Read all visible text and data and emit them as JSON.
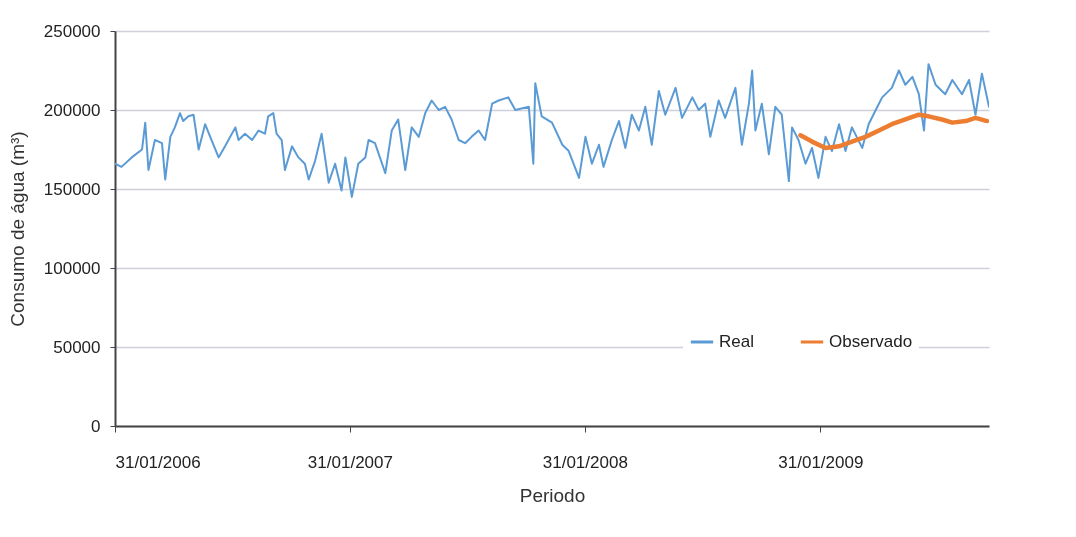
{
  "chart_data": {
    "type": "line",
    "xlabel": "Periodo",
    "ylabel": "Consumo de água (m³)",
    "xlim": [
      "2006-01-31",
      "2009-10-20"
    ],
    "xticks": [
      {
        "value": "2006-01-31",
        "label": "31/01/2006"
      },
      {
        "value": "2007-01-31",
        "label": "31/01/2007"
      },
      {
        "value": "2008-01-31",
        "label": "31/01/2008"
      },
      {
        "value": "2009-01-31",
        "label": "31/01/2009"
      }
    ],
    "ylim": [
      0,
      250000
    ],
    "yticks": [
      0,
      50000,
      100000,
      150000,
      200000,
      250000
    ],
    "grid": "y",
    "legend": "bottom right",
    "series": [
      {
        "name": "Real",
        "color": "#5b9bd5",
        "x": [
          "2006-01-31",
          "2006-02-10",
          "2006-02-26",
          "2006-03-14",
          "2006-03-19",
          "2006-03-24",
          "2006-04-03",
          "2006-04-14",
          "2006-04-19",
          "2006-04-27",
          "2006-05-04",
          "2006-05-12",
          "2006-05-17",
          "2006-05-25",
          "2006-06-02",
          "2006-06-10",
          "2006-06-20",
          "2006-06-30",
          "2006-07-11",
          "2006-07-21",
          "2006-08-06",
          "2006-08-11",
          "2006-08-21",
          "2006-09-01",
          "2006-09-11",
          "2006-09-21",
          "2006-09-26",
          "2006-10-04",
          "2006-10-09",
          "2006-10-17",
          "2006-10-22",
          "2006-11-02",
          "2006-11-12",
          "2006-11-22",
          "2006-11-28",
          "2006-12-08",
          "2006-12-18",
          "2006-12-29",
          "2007-01-08",
          "2007-01-18",
          "2007-01-24",
          "2007-02-03",
          "2007-02-13",
          "2007-02-24",
          "2007-03-01",
          "2007-03-11",
          "2007-03-22",
          "2007-03-27",
          "2007-04-06",
          "2007-04-16",
          "2007-04-27",
          "2007-05-07",
          "2007-05-18",
          "2007-05-28",
          "2007-06-07",
          "2007-06-18",
          "2007-06-28",
          "2007-07-08",
          "2007-07-19",
          "2007-07-29",
          "2007-08-08",
          "2007-08-19",
          "2007-08-29",
          "2007-09-09",
          "2007-09-19",
          "2007-10-04",
          "2007-10-15",
          "2007-11-05",
          "2007-11-12",
          "2007-11-15",
          "2007-11-25",
          "2007-12-11",
          "2007-12-27",
          "2008-01-06",
          "2008-01-22",
          "2008-02-01",
          "2008-02-11",
          "2008-02-22",
          "2008-02-29",
          "2008-03-13",
          "2008-03-24",
          "2008-04-03",
          "2008-04-13",
          "2008-04-24",
          "2008-05-04",
          "2008-05-14",
          "2008-05-25",
          "2008-06-04",
          "2008-06-20",
          "2008-06-30",
          "2008-07-16",
          "2008-07-26",
          "2008-08-05",
          "2008-08-13",
          "2008-08-26",
          "2008-09-05",
          "2008-09-21",
          "2008-10-01",
          "2008-10-12",
          "2008-10-17",
          "2008-10-22",
          "2008-11-01",
          "2008-11-12",
          "2008-11-22",
          "2008-12-02",
          "2008-12-13",
          "2008-12-18",
          "2008-12-28",
          "2009-01-08",
          "2009-01-18",
          "2009-01-28",
          "2009-02-08",
          "2009-02-18",
          "2009-03-01",
          "2009-03-11",
          "2009-03-21",
          "2009-04-06",
          "2009-04-16",
          "2009-04-27",
          "2009-05-07",
          "2009-05-22",
          "2009-06-02",
          "2009-06-12",
          "2009-06-23",
          "2009-07-03",
          "2009-07-11",
          "2009-07-18",
          "2009-07-29",
          "2009-08-13",
          "2009-08-24",
          "2009-09-08",
          "2009-09-19",
          "2009-09-29",
          "2009-10-09",
          "2009-10-20"
        ],
        "values": [
          166000,
          164000,
          170000,
          175000,
          192000,
          162000,
          181000,
          179000,
          156000,
          183000,
          189000,
          198000,
          193000,
          196000,
          197000,
          175000,
          191000,
          181000,
          170000,
          177000,
          189000,
          181000,
          185000,
          181000,
          187000,
          185000,
          196000,
          198000,
          185000,
          181000,
          162000,
          177000,
          170000,
          166000,
          156000,
          168000,
          185000,
          154000,
          166000,
          149000,
          170000,
          145000,
          166000,
          170000,
          181000,
          179000,
          166000,
          160000,
          187000,
          194000,
          162000,
          189000,
          183000,
          198000,
          206000,
          200000,
          202000,
          194000,
          181000,
          179000,
          183000,
          187000,
          181000,
          204000,
          206000,
          208000,
          200000,
          202000,
          166000,
          217000,
          196000,
          192000,
          178000,
          174000,
          157000,
          183000,
          166000,
          178000,
          164000,
          181000,
          193000,
          176000,
          197000,
          187000,
          202000,
          178000,
          212000,
          197000,
          214000,
          195000,
          208000,
          200000,
          204000,
          183000,
          206000,
          195000,
          214000,
          178000,
          204000,
          225000,
          187000,
          204000,
          172000,
          202000,
          197000,
          155000,
          189000,
          181000,
          166000,
          176000,
          157000,
          183000,
          174000,
          191000,
          174000,
          189000,
          176000,
          191000,
          200000,
          208000,
          214000,
          225000,
          216000,
          221000,
          210000,
          187000,
          229000,
          216000,
          210000,
          219000,
          210000,
          219000,
          197000,
          223000,
          202000
        ]
      },
      {
        "name": "Observado",
        "color": "#ed7d31",
        "x": [
          "2008-12-31",
          "2009-01-18",
          "2009-02-08",
          "2009-03-01",
          "2009-03-21",
          "2009-04-11",
          "2009-05-02",
          "2009-05-22",
          "2009-06-12",
          "2009-07-03",
          "2009-07-18",
          "2009-08-08",
          "2009-08-24",
          "2009-09-14",
          "2009-09-29",
          "2009-10-17"
        ],
        "values": [
          184000,
          180000,
          176000,
          177000,
          180000,
          183000,
          187000,
          191000,
          194000,
          197000,
          196000,
          194000,
          192000,
          193000,
          195000,
          193000
        ]
      }
    ]
  }
}
